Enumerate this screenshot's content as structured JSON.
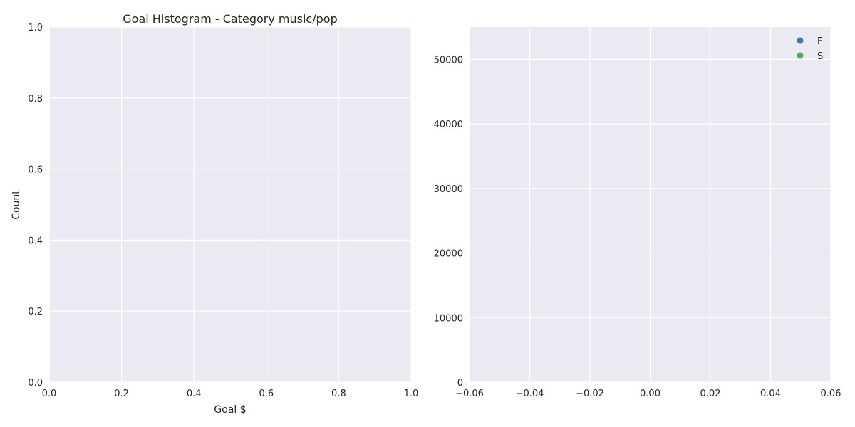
{
  "chart_data": [
    {
      "type": "bar",
      "title": "Goal Histogram - Category music/pop",
      "xlabel": "Goal $",
      "ylabel": "Count",
      "xlim": [
        0.0,
        1.0
      ],
      "ylim": [
        0.0,
        1.0
      ],
      "xticks": [
        "0.0",
        "0.2",
        "0.4",
        "0.6",
        "0.8",
        "1.0"
      ],
      "yticks": [
        "0.0",
        "0.2",
        "0.4",
        "0.6",
        "0.8",
        "1.0"
      ],
      "values": [],
      "grid": true,
      "colors": {
        "background": "#eaeaf2",
        "grid": "#ffffff"
      }
    },
    {
      "type": "scatter",
      "title": "",
      "xlabel": "",
      "ylabel": "",
      "xlim": [
        -0.06,
        0.06
      ],
      "ylim": [
        0,
        55000
      ],
      "xticks": [
        "−0.06",
        "−0.04",
        "−0.02",
        "0.00",
        "0.02",
        "0.04",
        "0.06"
      ],
      "yticks": [
        "0",
        "10000",
        "20000",
        "30000",
        "40000",
        "50000"
      ],
      "series": [
        {
          "name": "F",
          "color": "#4c72b0",
          "points": []
        },
        {
          "name": "S",
          "color": "#55a868",
          "points": []
        }
      ],
      "legend": "top-right",
      "grid": true,
      "colors": {
        "background": "#eaeaf2",
        "grid": "#ffffff"
      }
    }
  ]
}
